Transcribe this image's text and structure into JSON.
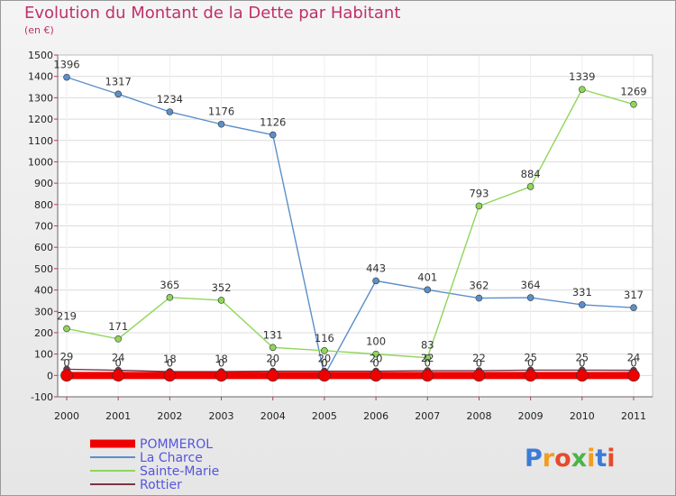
{
  "title": "Evolution du Montant de la Dette par Habitant",
  "unit": "(en €)",
  "brand": "Proxiti",
  "chart_data": {
    "type": "line",
    "title": "Evolution du Montant de la Dette par Habitant",
    "ylabel": "(en €)",
    "xlabel": "",
    "ylim": [
      -100,
      1500
    ],
    "yticks": [
      -100,
      0,
      100,
      200,
      300,
      400,
      500,
      600,
      700,
      800,
      900,
      1000,
      1100,
      1200,
      1300,
      1400,
      1500
    ],
    "categories": [
      "2000",
      "2001",
      "2002",
      "2003",
      "2004",
      "2005",
      "2006",
      "2007",
      "2008",
      "2009",
      "2010",
      "2011"
    ],
    "legend_position": "bottom-left",
    "series": [
      {
        "name": "POMMEROL",
        "color": "#ee0000",
        "values": [
          0,
          0,
          0,
          0,
          0,
          0,
          0,
          0,
          0,
          0,
          0,
          0
        ],
        "labels": [
          "0",
          "0",
          "0",
          "0",
          "0",
          "0",
          "0",
          "0",
          "0",
          "0",
          "0",
          "0"
        ]
      },
      {
        "name": "La Charce",
        "color": "#5b8fc9",
        "values": [
          1396,
          1317,
          1234,
          1176,
          1126,
          0,
          443,
          401,
          362,
          364,
          331,
          317
        ],
        "labels": [
          "1396",
          "1317",
          "1234",
          "1176",
          "1126",
          "0",
          "443",
          "401",
          "362",
          "364",
          "331",
          "317"
        ]
      },
      {
        "name": "Sainte-Marie",
        "color": "#8ed65a",
        "values": [
          219,
          171,
          365,
          352,
          131,
          116,
          100,
          83,
          793,
          884,
          1339,
          1269
        ],
        "labels": [
          "219",
          "171",
          "365",
          "352",
          "131",
          "116",
          "100",
          "83",
          "793",
          "884",
          "1339",
          "1269"
        ]
      },
      {
        "name": "Rottier",
        "color": "#7a3545",
        "values": [
          29,
          24,
          18,
          18,
          20,
          20,
          20,
          22,
          22,
          25,
          25,
          24
        ],
        "labels": [
          "29",
          "24",
          "18",
          "18",
          "20",
          "20",
          "20",
          "22",
          "22",
          "25",
          "25",
          "24"
        ]
      }
    ]
  }
}
